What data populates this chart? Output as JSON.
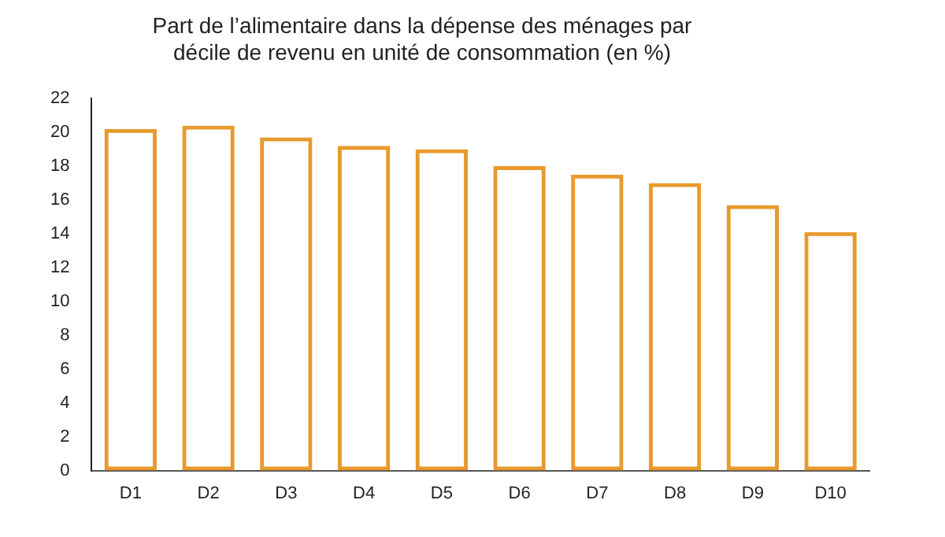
{
  "chart_data": {
    "type": "bar",
    "title": "Part de l’alimentaire dans la dépense des ménages par décile de revenu en unité de consommation (en %)",
    "categories": [
      "D1",
      "D2",
      "D3",
      "D4",
      "D5",
      "D6",
      "D7",
      "D8",
      "D9",
      "D10"
    ],
    "values": [
      20.2,
      20.4,
      19.7,
      19.2,
      19.0,
      18.0,
      17.5,
      17.0,
      15.7,
      14.1
    ],
    "color": "#e89a2c",
    "ylim": [
      0,
      22
    ],
    "yticks": [
      0,
      2,
      4,
      6,
      8,
      10,
      12,
      14,
      16,
      18,
      20,
      22
    ],
    "grid": false
  }
}
